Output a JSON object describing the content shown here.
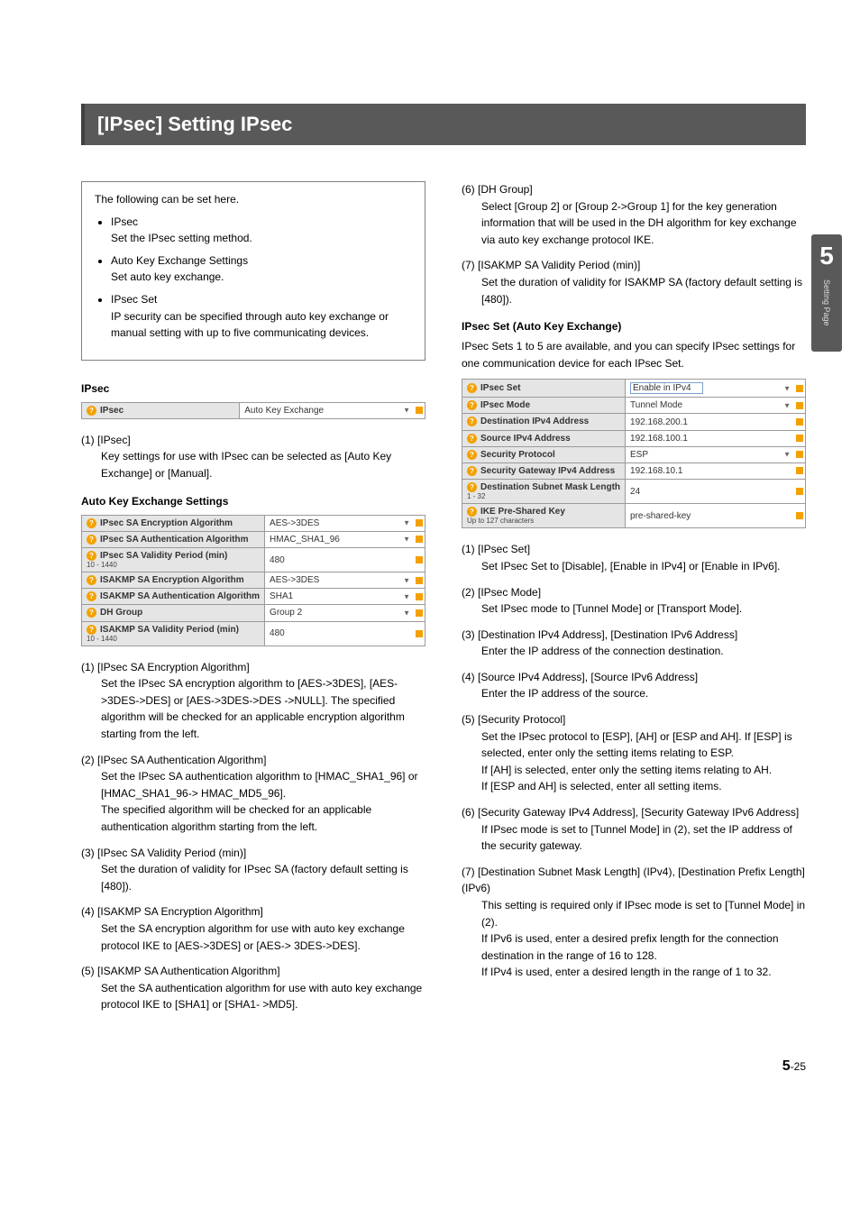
{
  "title": "[IPsec] Setting IPsec",
  "intro": {
    "lead": "The following can be set here.",
    "items": [
      {
        "label": "IPsec",
        "desc": "Set the IPsec setting method."
      },
      {
        "label": "Auto Key Exchange Settings",
        "desc": "Set auto key exchange."
      },
      {
        "label": "IPsec Set",
        "desc": "IP security can be specified through auto key exchange or manual setting with up to five communicating devices."
      }
    ]
  },
  "left": {
    "ipsec_heading": "IPsec",
    "ipsec_table": [
      {
        "label": "IPsec",
        "value": "Auto Key Exchange",
        "dropdown": true
      }
    ],
    "ipsec_items": [
      {
        "num": "(1)",
        "title": "[IPsec]",
        "body": "Key settings for use with IPsec can be selected as [Auto Key Exchange] or [Manual]."
      }
    ],
    "ake_heading": "Auto Key Exchange Settings",
    "ake_table": [
      {
        "label": "IPsec SA Encryption Algorithm",
        "value": "AES->3DES",
        "dropdown": true
      },
      {
        "label": "IPsec SA Authentication Algorithm",
        "value": "HMAC_SHA1_96",
        "dropdown": true
      },
      {
        "label": "IPsec SA Validity Period (min)",
        "sub": "10 - 1440",
        "value": "480"
      },
      {
        "label": "ISAKMP SA Encryption Algorithm",
        "value": "AES->3DES",
        "dropdown": true
      },
      {
        "label": "ISAKMP SA Authentication Algorithm",
        "value": "SHA1",
        "dropdown": true
      },
      {
        "label": "DH Group",
        "value": "Group 2",
        "dropdown": true
      },
      {
        "label": "ISAKMP SA Validity Period (min)",
        "sub": "10 - 1440",
        "value": "480"
      }
    ],
    "ake_items": [
      {
        "num": "(1)",
        "title": "[IPsec SA Encryption Algorithm]",
        "body": "Set the IPsec SA encryption algorithm to [AES->3DES], [AES->3DES->DES] or [AES->3DES->DES ->NULL]. The specified algorithm will be checked for an applicable encryption algorithm starting from the left."
      },
      {
        "num": "(2)",
        "title": "[IPsec SA Authentication Algorithm]",
        "body": "Set the IPsec SA authentication algorithm to [HMAC_SHA1_96] or [HMAC_SHA1_96-> HMAC_MD5_96].\nThe specified algorithm will be checked for an applicable authentication algorithm starting from the left."
      },
      {
        "num": "(3)",
        "title": "[IPsec SA Validity Period (min)]",
        "body": "Set the duration of validity for IPsec SA (factory default setting is [480])."
      },
      {
        "num": "(4)",
        "title": "[ISAKMP SA Encryption Algorithm]",
        "body": "Set the SA encryption algorithm for use with auto key exchange protocol IKE to [AES->3DES] or [AES-> 3DES->DES]."
      },
      {
        "num": "(5)",
        "title": "[ISAKMP SA Authentication Algorithm]",
        "body": "Set the SA authentication algorithm for use with auto key exchange protocol IKE to [SHA1] or [SHA1- >MD5]."
      }
    ]
  },
  "right": {
    "top_items": [
      {
        "num": "(6)",
        "title": "[DH Group]",
        "body": "Select [Group 2] or [Group 2->Group 1] for the key generation information that will be used in the DH algorithm for key exchange via auto key exchange protocol IKE."
      },
      {
        "num": "(7)",
        "title": "[ISAKMP SA Validity Period (min)]",
        "body": "Set the duration of validity for ISAKMP SA (factory default setting is [480])."
      }
    ],
    "set_heading": "IPsec Set (Auto Key Exchange)",
    "set_lead": "IPsec Sets 1 to 5 are available, and you can specify IPsec settings for one communication device for each IPsec Set.",
    "set_table": [
      {
        "label": "IPsec Set",
        "value": "Enable in IPv4",
        "dropdown": true,
        "boxed": true
      },
      {
        "label": "IPsec Mode",
        "value": "Tunnel Mode",
        "dropdown": true
      },
      {
        "label": "Destination IPv4 Address",
        "value": "192.168.200.1"
      },
      {
        "label": "Source IPv4 Address",
        "value": "192.168.100.1"
      },
      {
        "label": "Security Protocol",
        "value": "ESP",
        "dropdown": true
      },
      {
        "label": "Security Gateway IPv4 Address",
        "value": "192.168.10.1"
      },
      {
        "label": "Destination Subnet Mask Length",
        "sub": "1 - 32",
        "value": "24"
      },
      {
        "label": "IKE Pre-Shared Key",
        "sub": "Up to 127 characters",
        "value": "pre-shared-key"
      }
    ],
    "set_items": [
      {
        "num": "(1)",
        "title": "[IPsec Set]",
        "body": "Set IPsec Set to [Disable], [Enable in IPv4] or [Enable in IPv6]."
      },
      {
        "num": "(2)",
        "title": "[IPsec Mode]",
        "body": "Set IPsec mode to [Tunnel Mode] or [Transport Mode]."
      },
      {
        "num": "(3)",
        "title": "[Destination IPv4 Address], [Destination IPv6 Address]",
        "body": "Enter the IP address of the connection destination."
      },
      {
        "num": "(4)",
        "title": "[Source IPv4 Address], [Source IPv6 Address]",
        "body": "Enter the IP address of the source."
      },
      {
        "num": "(5)",
        "title": "[Security Protocol]",
        "body": "Set the IPsec protocol to [ESP], [AH] or [ESP and AH]. If [ESP] is selected, enter only the setting items relating to ESP.\nIf [AH] is selected, enter only the setting items relating to AH.\nIf [ESP and AH] is selected, enter all setting items."
      },
      {
        "num": "(6)",
        "title": "[Security Gateway IPv4 Address], [Security Gateway IPv6 Address]",
        "body": "If IPsec mode is set to [Tunnel Mode] in (2), set the IP address of the security gateway."
      },
      {
        "num": "(7)",
        "title": "[Destination Subnet Mask Length] (IPv4), [Destination Prefix Length] (IPv6)",
        "body": "This setting is required only if IPsec mode is set to [Tunnel Mode] in (2).\nIf IPv6 is used, enter a desired prefix length for the connection destination in the range of 16 to 128.\nIf IPv4 is used, enter a desired length in the range of 1 to 32."
      }
    ]
  },
  "sidetab": {
    "chapter": "5",
    "label": "Setting Page"
  },
  "footer": {
    "chapter": "5",
    "page": "-25"
  }
}
